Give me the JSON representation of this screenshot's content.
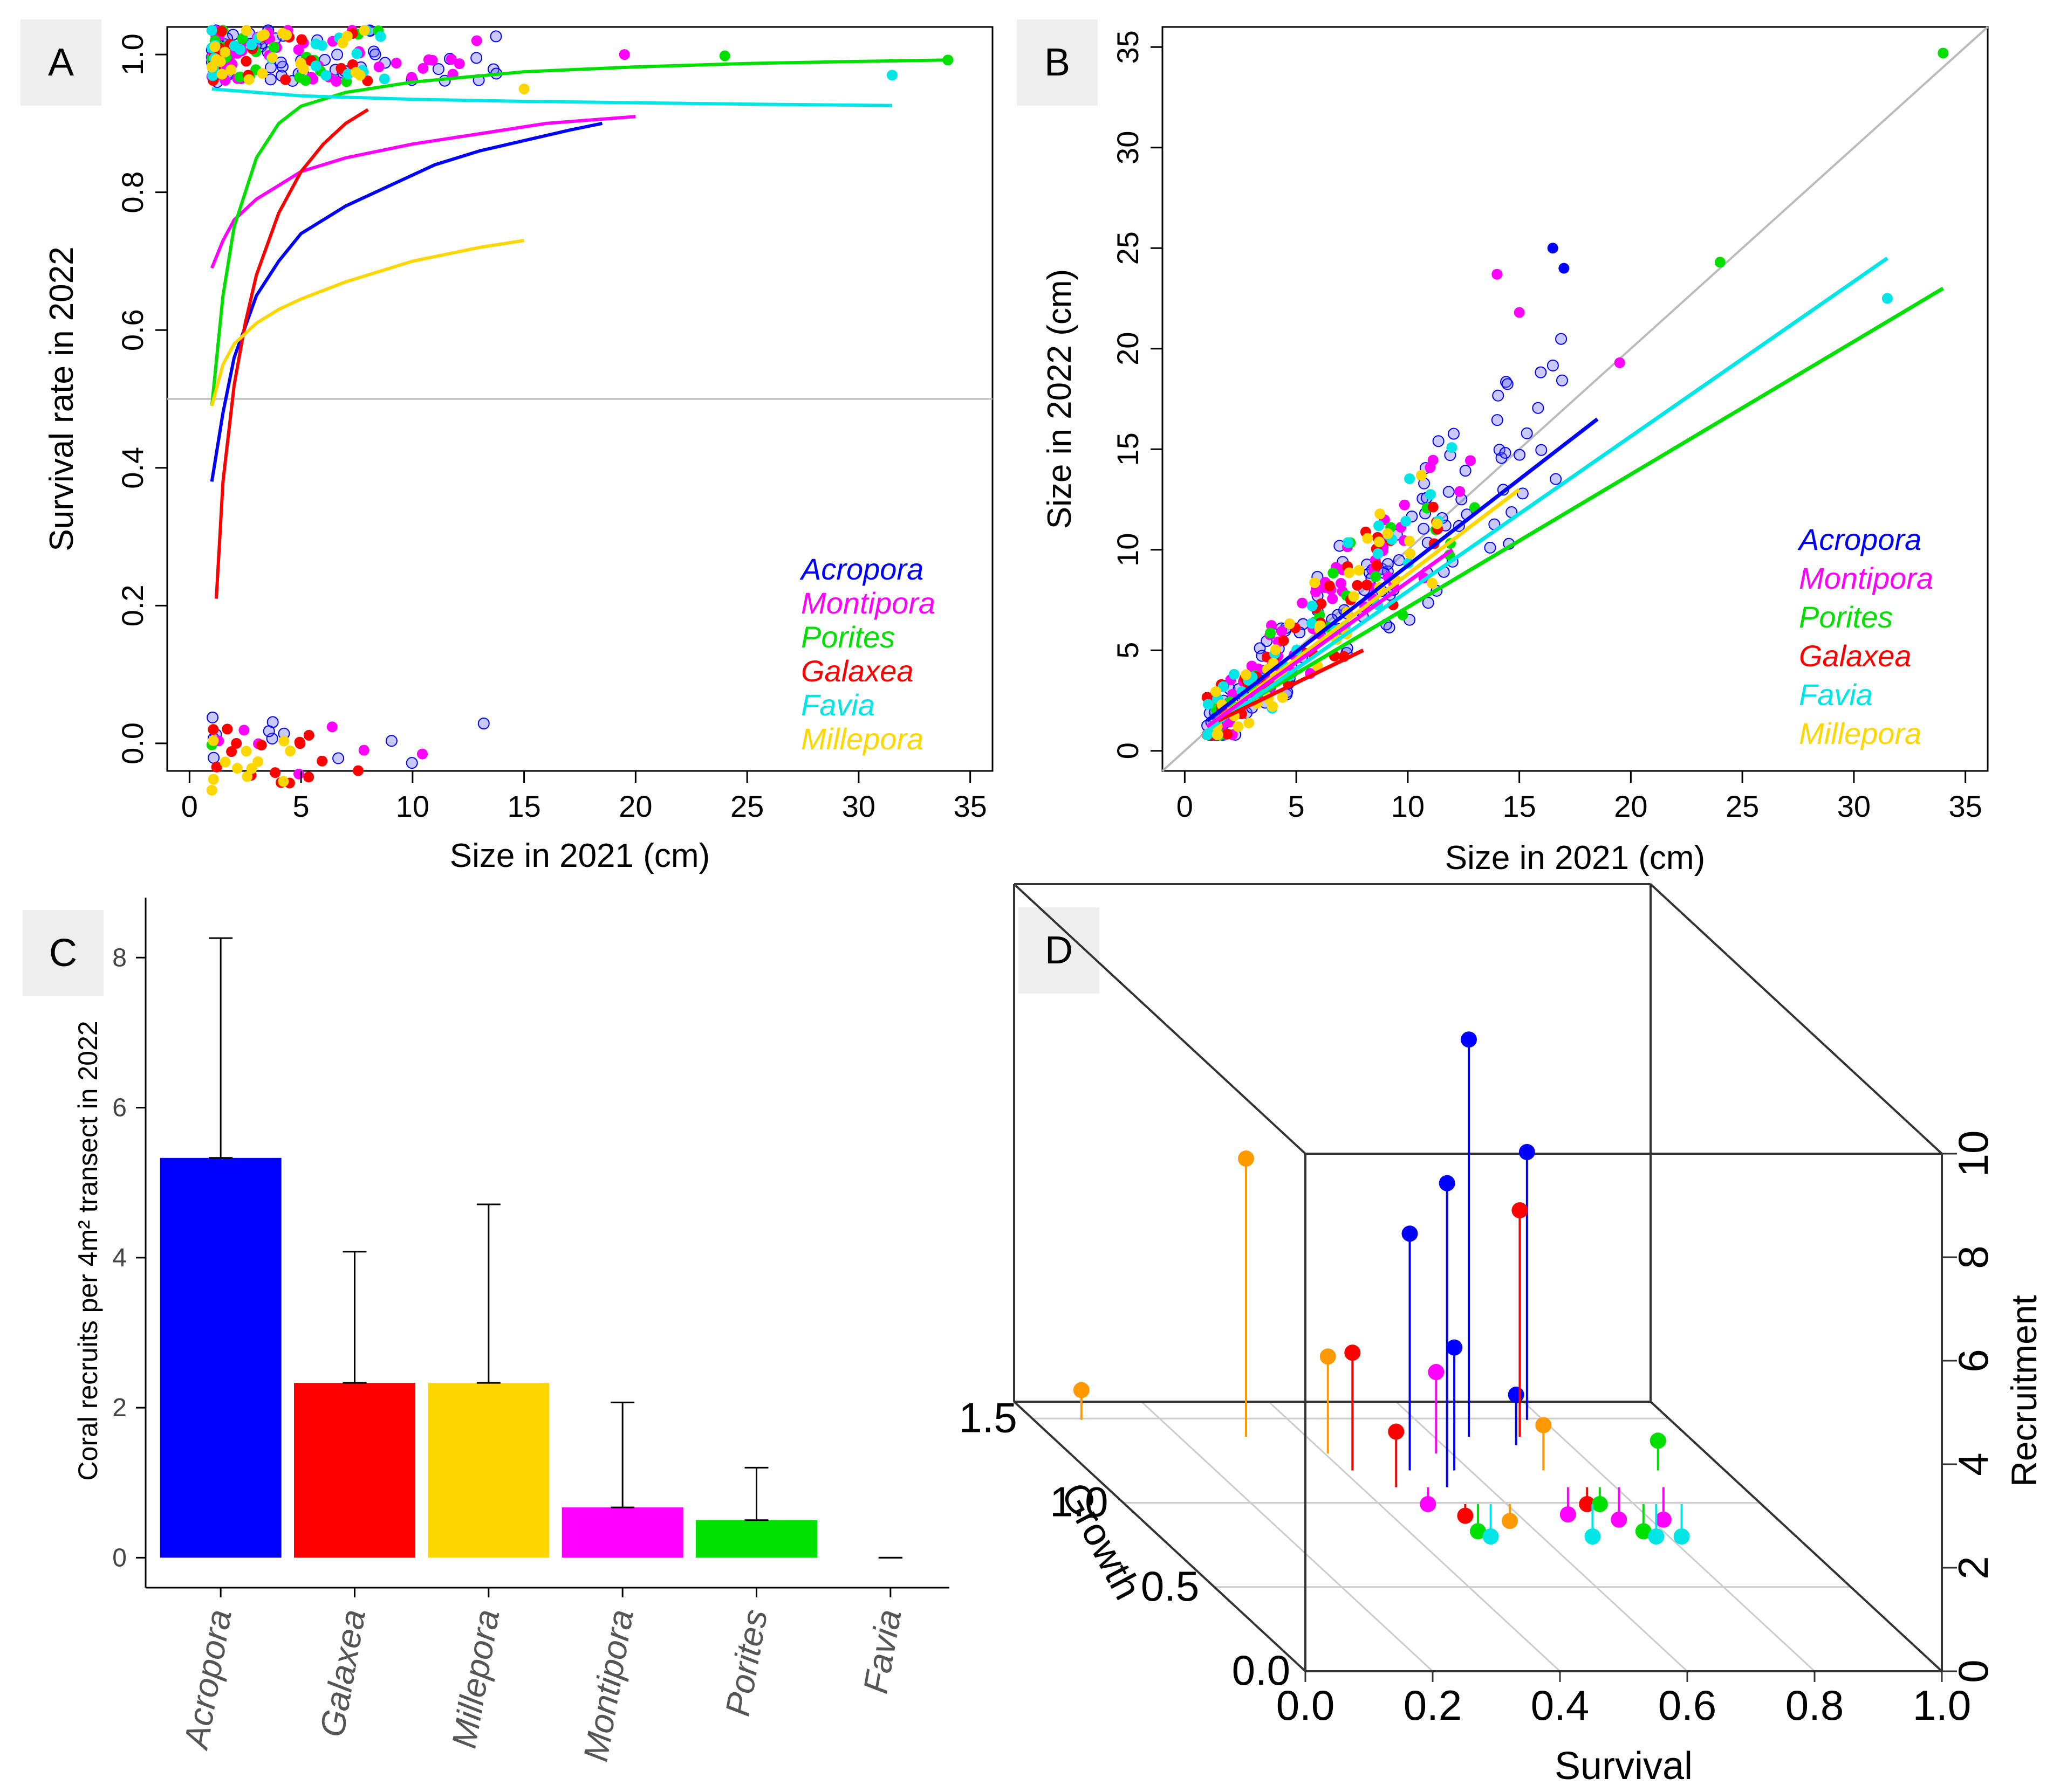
{
  "figure": {
    "background": "#ffffff"
  },
  "colors": {
    "Acropora": "#0000ff",
    "Montipora": "#ff00ff",
    "Porites": "#00e000",
    "Galaxea": "#ff0000",
    "Favia": "#00e6e6",
    "Millepora": "#ffd700",
    "MilleporaD": "#ff9900",
    "identity": "#bbbbbb",
    "hline": "#bbbbbb",
    "axis": "#000000",
    "errorbar": "#000000"
  },
  "chart_data": [
    {
      "panel": "A",
      "type": "scatter",
      "xlabel": "Size in 2021 (cm)",
      "ylabel": "Survival rate in 2022",
      "xlim": [
        -1,
        36
      ],
      "ylim": [
        -0.04,
        1.04
      ],
      "xticks": [
        "0",
        "5",
        "10",
        "15",
        "20",
        "25",
        "30",
        "35"
      ],
      "yticks": [
        "0.0",
        "0.2",
        "0.4",
        "0.6",
        "0.8",
        "1.0"
      ],
      "hline": 0.5,
      "legend": [
        "Acropora",
        "Montipora",
        "Porites",
        "Galaxea",
        "Favia",
        "Millepora"
      ],
      "legend_position": "bottom-right",
      "series": [
        {
          "name": "Acropora",
          "x": [
            1,
            1.5,
            2,
            3,
            4,
            5,
            7,
            9,
            11,
            13,
            15,
            17,
            18.5
          ],
          "y": [
            0.38,
            0.48,
            0.56,
            0.65,
            0.7,
            0.74,
            0.78,
            0.81,
            0.84,
            0.86,
            0.875,
            0.89,
            0.9
          ]
        },
        {
          "name": "Montipora",
          "x": [
            1,
            1.5,
            2,
            3,
            4,
            5,
            7,
            10,
            13,
            16,
            20
          ],
          "y": [
            0.69,
            0.73,
            0.76,
            0.79,
            0.81,
            0.83,
            0.85,
            0.87,
            0.885,
            0.9,
            0.91
          ]
        },
        {
          "name": "Porites",
          "x": [
            1,
            1.5,
            2,
            3,
            4,
            5,
            7,
            10,
            15,
            20,
            25,
            30,
            34
          ],
          "y": [
            0.49,
            0.65,
            0.75,
            0.85,
            0.9,
            0.925,
            0.945,
            0.96,
            0.975,
            0.982,
            0.987,
            0.99,
            0.992
          ]
        },
        {
          "name": "Galaxea",
          "x": [
            1.2,
            1.5,
            2,
            2.5,
            3,
            4,
            5,
            6,
            7,
            8
          ],
          "y": [
            0.21,
            0.38,
            0.52,
            0.61,
            0.68,
            0.77,
            0.83,
            0.87,
            0.9,
            0.92
          ]
        },
        {
          "name": "Favia",
          "x": [
            1,
            3,
            5,
            10,
            15,
            20,
            25,
            31.5
          ],
          "y": [
            0.95,
            0.945,
            0.94,
            0.935,
            0.932,
            0.93,
            0.928,
            0.926
          ]
        },
        {
          "name": "Millepora",
          "x": [
            1,
            1.5,
            2,
            3,
            4,
            5,
            7,
            10,
            13,
            15
          ],
          "y": [
            0.49,
            0.55,
            0.58,
            0.61,
            0.63,
            0.645,
            0.67,
            0.7,
            0.72,
            0.73
          ]
        }
      ]
    },
    {
      "panel": "B",
      "type": "scatter",
      "xlabel": "Size in 2021 (cm)",
      "ylabel": "Size in 2022 (cm)",
      "xlim": [
        -1,
        36
      ],
      "ylim": [
        -1,
        36
      ],
      "xticks": [
        "0",
        "5",
        "10",
        "15",
        "20",
        "25",
        "30",
        "35"
      ],
      "yticks": [
        "0",
        "5",
        "10",
        "15",
        "20",
        "25",
        "30",
        "35"
      ],
      "identity_line": true,
      "legend": [
        "Acropora",
        "Montipora",
        "Porites",
        "Galaxea",
        "Favia",
        "Millepora"
      ],
      "legend_position": "bottom-right",
      "series": [
        {
          "name": "Acropora",
          "x": [
            1,
            18.5
          ],
          "y": [
            1.5,
            16.5
          ]
        },
        {
          "name": "Porites",
          "x": [
            1,
            34
          ],
          "y": [
            1.2,
            23
          ]
        },
        {
          "name": "Favia",
          "x": [
            1,
            31.5
          ],
          "y": [
            1.0,
            24.5
          ]
        },
        {
          "name": "Galaxea",
          "x": [
            1.5,
            8
          ],
          "y": [
            1.5,
            5.0
          ]
        },
        {
          "name": "Millepora",
          "x": [
            1,
            15
          ],
          "y": [
            1.2,
            13
          ]
        },
        {
          "name": "Montipora",
          "x": [
            1,
            12
          ],
          "y": [
            1.2,
            10
          ]
        }
      ]
    },
    {
      "panel": "C",
      "type": "bar",
      "ylabel": "Coral recruits per 4m² transect in 2022",
      "ylim": [
        -0.4,
        8.8
      ],
      "yticks": [
        "0",
        "2",
        "4",
        "6",
        "8"
      ],
      "categories": [
        "Acropora",
        "Galaxea",
        "Millepora",
        "Montipora",
        "Porites",
        "Favia"
      ],
      "values": [
        5.33,
        2.33,
        2.33,
        0.67,
        0.5,
        0
      ],
      "errors": [
        2.93,
        1.75,
        2.38,
        1.4,
        0.7,
        0
      ]
    },
    {
      "panel": "D",
      "type": "scatter",
      "xlabel": "Survival",
      "ylabel": "Growth",
      "zlabel": "Recruitment",
      "xticks": [
        "0.0",
        "0.2",
        "0.4",
        "0.6",
        "0.8",
        "1.0"
      ],
      "yticks": [
        "0.0",
        "0.5",
        "1.0",
        "1.5"
      ],
      "zticks": [
        "0",
        "2",
        "4",
        "6",
        "8",
        "10"
      ],
      "points": [
        {
          "series": "Acropora",
          "x": 0.45,
          "y": 1.0,
          "z": 5.2
        },
        {
          "series": "Acropora",
          "x": 0.48,
          "y": 0.9,
          "z": 6.5
        },
        {
          "series": "Acropora",
          "x": 0.52,
          "y": 1.0,
          "z": 3.0
        },
        {
          "series": "Acropora",
          "x": 0.6,
          "y": 1.2,
          "z": 8.3
        },
        {
          "series": "Acropora",
          "x": 0.66,
          "y": 1.15,
          "z": 1.6
        },
        {
          "series": "Acropora",
          "x": 0.72,
          "y": 1.3,
          "z": 5.8
        },
        {
          "series": "Galaxea",
          "x": 0.36,
          "y": 1.0,
          "z": 2.9
        },
        {
          "series": "Galaxea",
          "x": 0.4,
          "y": 0.9,
          "z": 1.7
        },
        {
          "series": "Galaxea",
          "x": 0.48,
          "y": 0.8,
          "z": 0.4
        },
        {
          "series": "Galaxea",
          "x": 0.7,
          "y": 0.9,
          "z": 0.3
        },
        {
          "series": "Galaxea",
          "x": 0.68,
          "y": 1.2,
          "z": 5.0
        },
        {
          "series": "Millepora",
          "x": 0.02,
          "y": 1.3,
          "z": 1.2
        },
        {
          "series": "Millepora",
          "x": 0.25,
          "y": 1.2,
          "z": 6.0
        },
        {
          "series": "Millepora",
          "x": 0.35,
          "y": 1.1,
          "z": 2.5
        },
        {
          "series": "Millepora",
          "x": 0.55,
          "y": 0.8,
          "z": 0.3
        },
        {
          "series": "Millepora",
          "x": 0.66,
          "y": 1.0,
          "z": 1.5
        },
        {
          "series": "Montipora",
          "x": 0.45,
          "y": 0.9,
          "z": 0.3
        },
        {
          "series": "Montipora",
          "x": 0.52,
          "y": 1.1,
          "z": 2.2
        },
        {
          "series": "Montipora",
          "x": 0.67,
          "y": 0.9,
          "z": 0.1
        },
        {
          "series": "Montipora",
          "x": 0.75,
          "y": 0.9,
          "z": 0.0
        },
        {
          "series": "Montipora",
          "x": 0.82,
          "y": 0.9,
          "z": 0.0
        },
        {
          "series": "Porites",
          "x": 0.5,
          "y": 0.8,
          "z": 0.1
        },
        {
          "series": "Porites",
          "x": 0.72,
          "y": 0.9,
          "z": 0.3
        },
        {
          "series": "Porites",
          "x": 0.76,
          "y": 0.8,
          "z": 0.1
        },
        {
          "series": "Porites",
          "x": 0.84,
          "y": 1.0,
          "z": 1.2
        },
        {
          "series": "Favia",
          "x": 0.52,
          "y": 0.8,
          "z": 0.0
        },
        {
          "series": "Favia",
          "x": 0.68,
          "y": 0.8,
          "z": 0.0
        },
        {
          "series": "Favia",
          "x": 0.78,
          "y": 0.8,
          "z": 0.0
        },
        {
          "series": "Favia",
          "x": 0.82,
          "y": 0.8,
          "z": 0.0
        }
      ]
    }
  ],
  "panels": {
    "a": {
      "tag": "A",
      "legend": [
        "Acropora",
        "Montipora",
        "Porites",
        "Galaxea",
        "Favia",
        "Millepora"
      ]
    },
    "b": {
      "tag": "B",
      "legend": [
        "Acropora",
        "Montipora",
        "Porites",
        "Galaxea",
        "Favia",
        "Millepora"
      ]
    },
    "c": {
      "tag": "C"
    },
    "d": {
      "tag": "D"
    }
  }
}
